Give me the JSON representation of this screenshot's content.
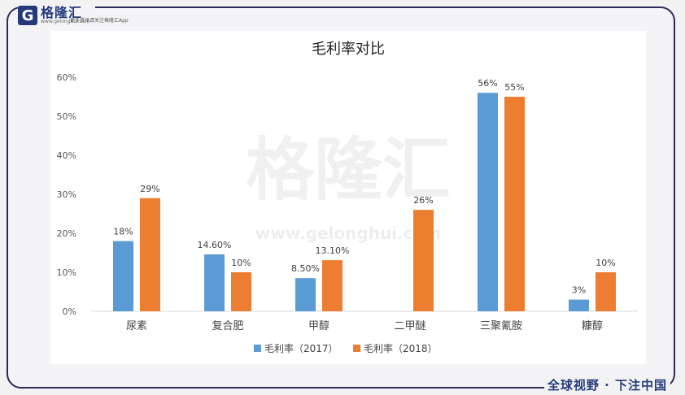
{
  "brand": {
    "name": "格隆汇",
    "url": "www.gelonghui.com",
    "tagline": "更多资讯请关注格隆汇App",
    "slogan": "全球视野 · 下注中国",
    "watermark": "格隆汇",
    "watermark_url": "www.gelonghui.com"
  },
  "colors": {
    "series2017": "#5b9bd5",
    "series2018": "#ed7d31",
    "frame": "#2b2b5a"
  },
  "chart_data": {
    "type": "bar",
    "title": "毛利率对比",
    "categories": [
      "尿素",
      "复合肥",
      "甲醇",
      "二甲醚",
      "三聚氰胺",
      "糠醇"
    ],
    "series": [
      {
        "name": "毛利率（2017）",
        "values": [
          18,
          14.6,
          8.5,
          null,
          56,
          3
        ],
        "labels": [
          "18%",
          "14.60%",
          "8.50%",
          "",
          "56%",
          "3%"
        ]
      },
      {
        "name": "毛利率（2018）",
        "values": [
          29,
          10,
          13.1,
          26,
          55,
          10
        ],
        "labels": [
          "29%",
          "10%",
          "13.10%",
          "26%",
          "55%",
          "10%"
        ]
      }
    ],
    "ylim": [
      0,
      60
    ],
    "yticks": [
      0,
      10,
      20,
      30,
      40,
      50,
      60
    ],
    "ytick_labels": [
      "0%",
      "10%",
      "20%",
      "30%",
      "40%",
      "50%",
      "60%"
    ],
    "legend_position": "bottom",
    "grid": false
  }
}
